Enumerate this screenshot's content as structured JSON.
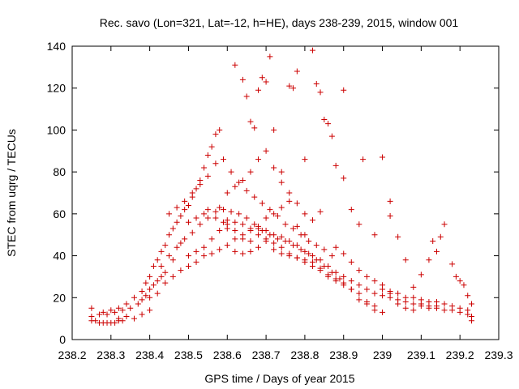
{
  "chart_data": {
    "type": "scatter",
    "title": "Rec. savo (Lon=321, Lat=-12, h=HE), days 238-239, 2015, window 001",
    "xlabel": "GPS time / Days of year 2015",
    "ylabel": "STEC from uqrg / TECUs",
    "xlim": [
      238.2,
      239.3
    ],
    "ylim": [
      0,
      140
    ],
    "xticks": [
      "238.2",
      "238.3",
      "238.4",
      "238.5",
      "238.6",
      "238.7",
      "238.8",
      "238.9",
      "239",
      "239.1",
      "239.2",
      "239.3"
    ],
    "yticks": [
      "0",
      "20",
      "40",
      "60",
      "80",
      "100",
      "120",
      "140"
    ],
    "grid": false,
    "marker": "+",
    "color": "#cc0000",
    "series": [
      {
        "points": [
          [
            238.25,
            9
          ],
          [
            238.26,
            9
          ],
          [
            238.27,
            8
          ],
          [
            238.28,
            8
          ],
          [
            238.29,
            8
          ],
          [
            238.3,
            8
          ],
          [
            238.31,
            8
          ],
          [
            238.32,
            9
          ],
          [
            238.33,
            9
          ],
          [
            238.25,
            11
          ],
          [
            238.27,
            12
          ],
          [
            238.29,
            12
          ],
          [
            238.31,
            13
          ],
          [
            238.33,
            14
          ],
          [
            238.35,
            15
          ],
          [
            238.37,
            17
          ],
          [
            238.38,
            19
          ],
          [
            238.39,
            21
          ],
          [
            238.4,
            24
          ],
          [
            238.41,
            26
          ],
          [
            238.42,
            28
          ],
          [
            238.43,
            30
          ],
          [
            238.44,
            32
          ],
          [
            238.25,
            15
          ],
          [
            238.28,
            13
          ],
          [
            238.3,
            14
          ],
          [
            238.32,
            15
          ],
          [
            238.34,
            17
          ],
          [
            238.36,
            20
          ],
          [
            238.38,
            23
          ],
          [
            238.39,
            27
          ],
          [
            238.4,
            30
          ],
          [
            238.41,
            35
          ],
          [
            238.42,
            38
          ],
          [
            238.43,
            42
          ],
          [
            238.44,
            45
          ],
          [
            238.45,
            50
          ],
          [
            238.46,
            53
          ],
          [
            238.47,
            56
          ],
          [
            238.48,
            59
          ],
          [
            238.49,
            62
          ],
          [
            238.5,
            64
          ],
          [
            238.51,
            68
          ],
          [
            238.52,
            72
          ],
          [
            238.53,
            76
          ],
          [
            238.54,
            82
          ],
          [
            238.55,
            88
          ],
          [
            238.56,
            92
          ],
          [
            238.57,
            98
          ],
          [
            238.58,
            100
          ],
          [
            238.4,
            20
          ],
          [
            238.42,
            22
          ],
          [
            238.44,
            27
          ],
          [
            238.46,
            30
          ],
          [
            238.48,
            33
          ],
          [
            238.5,
            35
          ],
          [
            238.52,
            37
          ],
          [
            238.54,
            40
          ],
          [
            238.56,
            41
          ],
          [
            238.58,
            43
          ],
          [
            238.6,
            45
          ],
          [
            238.62,
            48
          ],
          [
            238.64,
            50
          ],
          [
            238.66,
            52
          ],
          [
            238.68,
            53
          ],
          [
            238.7,
            52
          ],
          [
            238.72,
            50
          ],
          [
            238.74,
            49
          ],
          [
            238.76,
            47
          ],
          [
            238.78,
            45
          ],
          [
            238.8,
            42
          ],
          [
            238.82,
            40
          ],
          [
            238.84,
            38
          ],
          [
            238.86,
            35
          ],
          [
            238.88,
            32
          ],
          [
            238.9,
            30
          ],
          [
            238.92,
            28
          ],
          [
            238.94,
            26
          ],
          [
            238.96,
            24
          ],
          [
            238.98,
            22
          ],
          [
            239.0,
            21
          ],
          [
            239.02,
            20
          ],
          [
            239.04,
            19
          ],
          [
            239.06,
            18
          ],
          [
            239.08,
            17
          ],
          [
            239.1,
            16
          ],
          [
            239.12,
            15
          ],
          [
            239.14,
            15
          ],
          [
            239.16,
            14
          ],
          [
            239.18,
            14
          ],
          [
            239.2,
            13
          ],
          [
            239.22,
            12
          ],
          [
            239.23,
            11
          ],
          [
            238.43,
            35
          ],
          [
            238.45,
            40
          ],
          [
            238.47,
            44
          ],
          [
            238.49,
            48
          ],
          [
            238.51,
            51
          ],
          [
            238.53,
            55
          ],
          [
            238.55,
            58
          ],
          [
            238.57,
            61
          ],
          [
            238.59,
            62
          ],
          [
            238.61,
            61
          ],
          [
            238.63,
            60
          ],
          [
            238.65,
            58
          ],
          [
            238.67,
            55
          ],
          [
            238.69,
            52
          ],
          [
            238.71,
            50
          ],
          [
            238.73,
            48
          ],
          [
            238.75,
            47
          ],
          [
            238.77,
            45
          ],
          [
            238.79,
            43
          ],
          [
            238.81,
            41
          ],
          [
            238.83,
            38
          ],
          [
            238.85,
            35
          ],
          [
            238.87,
            32
          ],
          [
            238.89,
            29
          ],
          [
            238.5,
            40
          ],
          [
            238.52,
            42
          ],
          [
            238.54,
            44
          ],
          [
            238.56,
            48
          ],
          [
            238.58,
            52
          ],
          [
            238.6,
            55
          ],
          [
            238.62,
            56
          ],
          [
            238.64,
            55
          ],
          [
            238.66,
            53
          ],
          [
            238.68,
            50
          ],
          [
            238.7,
            48
          ],
          [
            238.72,
            46
          ],
          [
            238.74,
            44
          ],
          [
            238.76,
            41
          ],
          [
            238.78,
            39
          ],
          [
            238.8,
            37
          ],
          [
            238.82,
            35
          ],
          [
            238.84,
            33
          ],
          [
            238.86,
            30
          ],
          [
            238.88,
            28
          ],
          [
            238.9,
            26
          ],
          [
            238.92,
            24
          ],
          [
            238.94,
            22
          ],
          [
            238.6,
            70
          ],
          [
            238.62,
            73
          ],
          [
            238.64,
            76
          ],
          [
            238.66,
            80
          ],
          [
            238.68,
            86
          ],
          [
            238.7,
            90
          ],
          [
            238.72,
            82
          ],
          [
            238.74,
            75
          ],
          [
            238.76,
            70
          ],
          [
            238.78,
            65
          ],
          [
            238.8,
            60
          ],
          [
            238.82,
            57
          ],
          [
            238.62,
            131
          ],
          [
            238.64,
            124
          ],
          [
            238.65,
            116
          ],
          [
            238.66,
            104
          ],
          [
            238.67,
            101
          ],
          [
            238.68,
            119
          ],
          [
            238.69,
            125
          ],
          [
            238.7,
            123
          ],
          [
            238.71,
            135
          ],
          [
            238.72,
            100
          ],
          [
            238.74,
            80
          ],
          [
            238.76,
            121
          ],
          [
            238.77,
            120
          ],
          [
            238.78,
            128
          ],
          [
            238.8,
            86
          ],
          [
            238.82,
            138
          ],
          [
            238.83,
            122
          ],
          [
            238.84,
            118
          ],
          [
            238.85,
            105
          ],
          [
            238.86,
            103
          ],
          [
            238.87,
            97
          ],
          [
            238.88,
            83
          ],
          [
            238.9,
            119
          ],
          [
            238.9,
            77
          ],
          [
            238.92,
            62
          ],
          [
            238.94,
            55
          ],
          [
            238.95,
            86
          ],
          [
            238.98,
            50
          ],
          [
            239.0,
            87
          ],
          [
            239.02,
            66
          ],
          [
            239.02,
            59
          ],
          [
            239.04,
            49
          ],
          [
            239.06,
            38
          ],
          [
            239.08,
            25
          ],
          [
            239.1,
            31
          ],
          [
            239.12,
            38
          ],
          [
            239.13,
            47
          ],
          [
            239.14,
            42
          ],
          [
            239.15,
            49
          ],
          [
            239.16,
            55
          ],
          [
            239.18,
            36
          ],
          [
            239.19,
            30
          ],
          [
            239.2,
            28
          ],
          [
            239.21,
            26
          ],
          [
            239.22,
            21
          ],
          [
            239.23,
            17
          ],
          [
            238.96,
            17
          ],
          [
            238.98,
            16
          ],
          [
            239.0,
            24
          ],
          [
            239.02,
            23
          ],
          [
            239.04,
            22
          ],
          [
            239.06,
            20
          ],
          [
            239.08,
            20
          ],
          [
            239.1,
            19
          ],
          [
            239.12,
            18
          ],
          [
            239.14,
            18
          ],
          [
            239.16,
            17
          ],
          [
            239.18,
            16
          ],
          [
            239.2,
            15
          ],
          [
            239.22,
            14
          ],
          [
            239.23,
            9
          ],
          [
            238.55,
            62
          ],
          [
            238.57,
            58
          ],
          [
            238.59,
            56
          ],
          [
            238.6,
            53
          ],
          [
            238.62,
            42
          ],
          [
            238.64,
            41
          ],
          [
            238.66,
            42
          ],
          [
            238.68,
            44
          ],
          [
            238.7,
            47
          ],
          [
            238.72,
            43
          ],
          [
            238.74,
            41
          ],
          [
            238.76,
            40
          ],
          [
            238.78,
            39
          ],
          [
            238.8,
            38
          ],
          [
            238.82,
            37
          ],
          [
            238.84,
            34
          ],
          [
            238.86,
            31
          ],
          [
            238.88,
            29
          ],
          [
            238.9,
            27
          ],
          [
            238.92,
            24
          ],
          [
            238.94,
            19
          ],
          [
            238.96,
            18
          ],
          [
            238.98,
            14
          ],
          [
            239.0,
            13
          ],
          [
            238.45,
            60
          ],
          [
            238.47,
            63
          ],
          [
            238.49,
            66
          ],
          [
            238.51,
            70
          ],
          [
            238.53,
            74
          ],
          [
            238.55,
            78
          ],
          [
            238.57,
            84
          ],
          [
            238.59,
            86
          ],
          [
            238.61,
            80
          ],
          [
            238.63,
            75
          ],
          [
            238.65,
            71
          ],
          [
            238.67,
            68
          ],
          [
            238.69,
            65
          ],
          [
            238.71,
            62
          ],
          [
            238.73,
            59
          ],
          [
            238.75,
            55
          ],
          [
            238.77,
            53
          ],
          [
            238.79,
            50
          ],
          [
            238.81,
            47
          ],
          [
            238.83,
            45
          ],
          [
            238.85,
            43
          ],
          [
            238.87,
            40
          ],
          [
            238.36,
            10
          ],
          [
            238.38,
            12
          ],
          [
            238.4,
            14
          ],
          [
            238.34,
            11
          ],
          [
            238.32,
            10
          ],
          [
            238.46,
            38
          ],
          [
            238.48,
            46
          ],
          [
            238.5,
            56
          ],
          [
            238.52,
            58
          ],
          [
            238.54,
            60
          ],
          [
            238.58,
            63
          ],
          [
            238.6,
            57
          ],
          [
            238.62,
            52
          ],
          [
            238.64,
            48
          ],
          [
            238.66,
            47
          ],
          [
            238.68,
            54
          ],
          [
            238.7,
            58
          ],
          [
            238.72,
            60
          ],
          [
            238.74,
            63
          ],
          [
            238.76,
            66
          ],
          [
            238.78,
            54
          ],
          [
            238.8,
            50
          ],
          [
            238.84,
            61
          ],
          [
            238.88,
            44
          ],
          [
            238.9,
            41
          ],
          [
            238.92,
            37
          ],
          [
            238.94,
            33
          ],
          [
            238.96,
            30
          ],
          [
            238.98,
            28
          ],
          [
            239.0,
            26
          ],
          [
            239.02,
            22
          ],
          [
            239.04,
            17
          ],
          [
            239.06,
            15
          ],
          [
            239.08,
            14
          ],
          [
            239.1,
            17
          ],
          [
            239.12,
            16
          ],
          [
            239.14,
            16
          ]
        ]
      }
    ]
  }
}
